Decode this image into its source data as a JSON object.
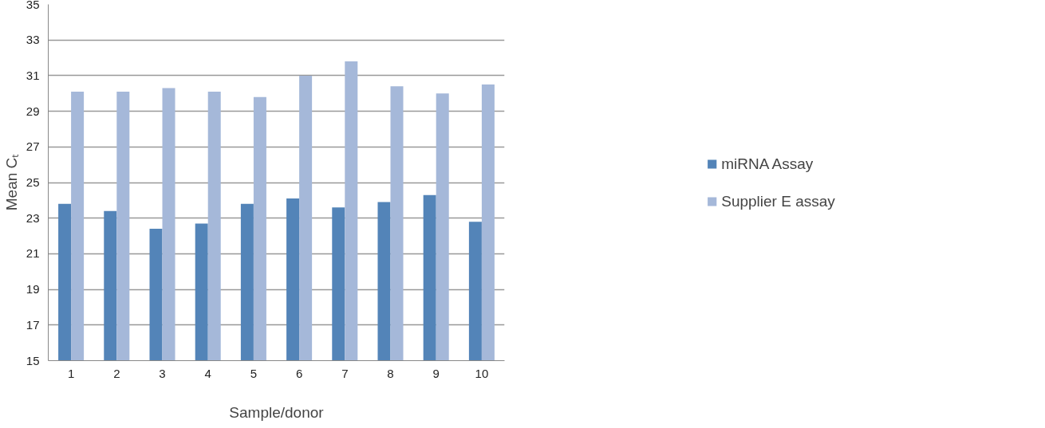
{
  "chart_data": {
    "type": "bar",
    "xlabel": "Sample/donor",
    "ylabel": "Mean Cₜ",
    "categories": [
      "1",
      "2",
      "3",
      "4",
      "5",
      "6",
      "7",
      "8",
      "9",
      "10"
    ],
    "series": [
      {
        "name": "miRNA Assay",
        "color": "#5384b8",
        "values": [
          23.8,
          23.4,
          22.4,
          22.7,
          23.8,
          24.1,
          23.6,
          23.9,
          24.3,
          22.8
        ]
      },
      {
        "name": "Supplier E assay",
        "color": "#a5b8d9",
        "values": [
          30.1,
          30.1,
          30.3,
          30.1,
          29.8,
          31.0,
          31.8,
          30.4,
          30.0,
          30.5
        ]
      }
    ],
    "ylim": [
      15,
      35
    ],
    "yticks": [
      15,
      17,
      19,
      21,
      23,
      25,
      27,
      29,
      31,
      33,
      35
    ],
    "grid": "y",
    "legend": "right"
  }
}
